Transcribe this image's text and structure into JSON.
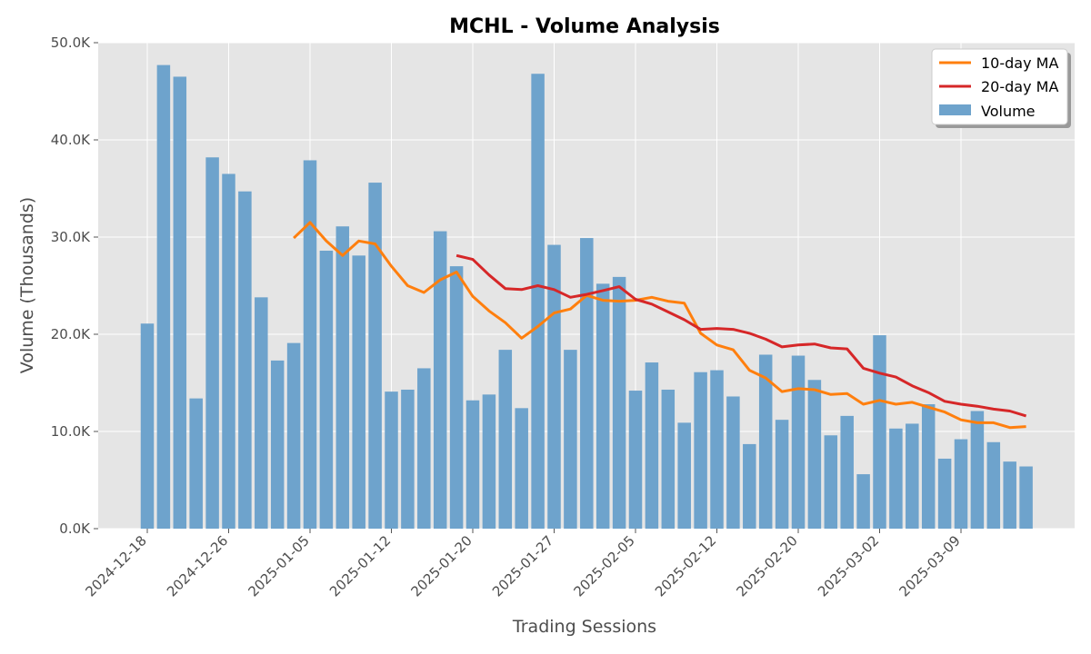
{
  "chart_data": {
    "type": "bar",
    "title": "MCHL - Volume Analysis",
    "xlabel": "Trading Sessions",
    "ylabel": "Volume (Thousands)",
    "ylim": [
      0,
      50000
    ],
    "yticks": [
      0,
      10000,
      20000,
      30000,
      40000,
      50000
    ],
    "ytick_labels": [
      "0.0K",
      "10.0K",
      "20.0K",
      "30.0K",
      "40.0K",
      "50.0K"
    ],
    "xtick_labels": [
      "2024-12-18",
      "2024-12-26",
      "2025-01-05",
      "2025-01-12",
      "2025-01-20",
      "2025-01-27",
      "2025-02-05",
      "2025-02-12",
      "2025-02-20",
      "2025-03-02",
      "2025-03-09"
    ],
    "xtick_indices": [
      0,
      5,
      10,
      15,
      20,
      25,
      30,
      35,
      40,
      45,
      50
    ],
    "grid": true,
    "legend_position": "top-right",
    "colors": {
      "volume": "#6ea3cc",
      "ma10": "#ff7f0e",
      "ma20": "#d62728",
      "background": "#e5e5e5"
    },
    "series": [
      {
        "name": "Volume",
        "kind": "bar",
        "values": [
          21100,
          47700,
          46500,
          13400,
          38200,
          36500,
          34700,
          23800,
          17300,
          19100,
          37900,
          28600,
          31100,
          28100,
          35600,
          14100,
          14300,
          16500,
          30600,
          27000,
          13200,
          13800,
          18400,
          12400,
          46800,
          29200,
          18400,
          29900,
          25200,
          25900,
          14200,
          17100,
          14300,
          10900,
          16100,
          16300,
          13600,
          8700,
          17900,
          11200,
          17800,
          15300,
          9600,
          11600,
          5600,
          19900,
          10300,
          10800,
          12800,
          7200,
          9200,
          12100,
          8900,
          6900,
          6400
        ]
      },
      {
        "name": "10-day MA",
        "kind": "line",
        "values": [
          null,
          null,
          null,
          null,
          null,
          null,
          null,
          null,
          null,
          29900,
          31500,
          29600,
          28100,
          29600,
          29300,
          27000,
          25000,
          24300,
          25600,
          26400,
          23900,
          22400,
          21200,
          19600,
          20800,
          22200,
          22600,
          24000,
          23500,
          23400,
          23500,
          23800,
          23400,
          23200,
          20100,
          18900,
          18400,
          16300,
          15500,
          14100,
          14400,
          14300,
          13800,
          13900,
          12800,
          13200,
          12800,
          13000,
          12500,
          12000,
          11200,
          10900,
          10900,
          10400,
          10500
        ]
      },
      {
        "name": "20-day MA",
        "kind": "line",
        "values": [
          null,
          null,
          null,
          null,
          null,
          null,
          null,
          null,
          null,
          null,
          null,
          null,
          null,
          null,
          null,
          null,
          null,
          null,
          null,
          28100,
          27700,
          26100,
          24700,
          24600,
          25000,
          24600,
          23800,
          24100,
          24500,
          24900,
          23600,
          23100,
          22300,
          21500,
          20500,
          20600,
          20500,
          20100,
          19500,
          18700,
          18900,
          19000,
          18600,
          18500,
          16500,
          16000,
          15600,
          14700,
          14000,
          13100,
          12800,
          12600,
          12300,
          12100,
          11600
        ]
      }
    ]
  }
}
